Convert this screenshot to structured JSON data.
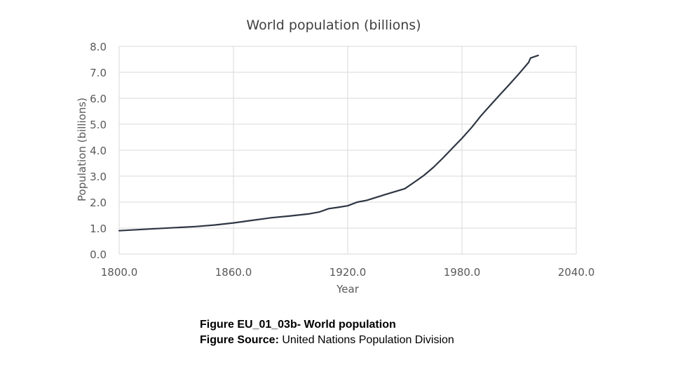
{
  "chart_data": {
    "type": "line",
    "title": "World population (billions)",
    "xlabel": "Year",
    "ylabel": "Population (billions)",
    "xlim": [
      1800,
      2040
    ],
    "ylim": [
      0,
      8
    ],
    "x_ticks": [
      "1800.0",
      "1860.0",
      "1920.0",
      "1980.0",
      "2040.0"
    ],
    "y_ticks": [
      "0.0",
      "1.0",
      "2.0",
      "3.0",
      "4.0",
      "5.0",
      "6.0",
      "7.0",
      "8.0"
    ],
    "grid": true,
    "legend": "none",
    "line_color": "#2e3644",
    "series": [
      {
        "x": [
          1800,
          1820,
          1840,
          1850,
          1860,
          1870,
          1880,
          1890,
          1900,
          1905,
          1910,
          1915,
          1920,
          1925,
          1930,
          1940,
          1950,
          1955,
          1960,
          1965,
          1970,
          1975,
          1980,
          1985,
          1990,
          1995,
          2000,
          2005,
          2010,
          2015,
          2016,
          2020
        ],
        "y": [
          0.9,
          0.98,
          1.06,
          1.12,
          1.2,
          1.3,
          1.4,
          1.47,
          1.55,
          1.62,
          1.75,
          1.8,
          1.86,
          2.0,
          2.07,
          2.3,
          2.52,
          2.77,
          3.03,
          3.34,
          3.7,
          4.08,
          4.46,
          4.87,
          5.33,
          5.74,
          6.14,
          6.54,
          6.95,
          7.38,
          7.55,
          7.65
        ]
      }
    ]
  },
  "caption": {
    "line1_bold": "Figure EU_01_03b- World population",
    "line2_bold": "Figure Source:",
    "line2_text": " United Nations Population Division"
  }
}
